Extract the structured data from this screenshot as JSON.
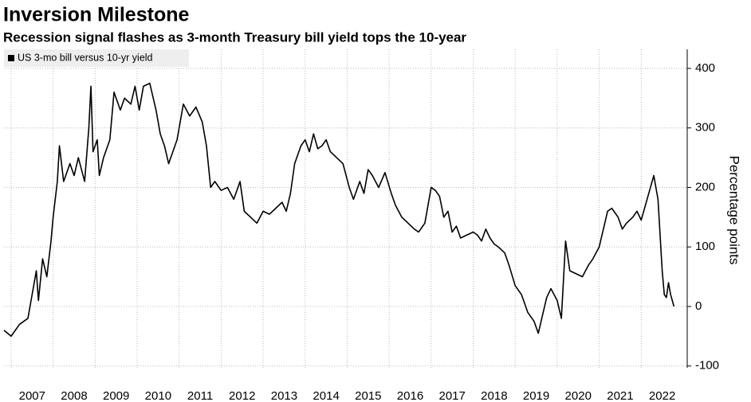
{
  "chart_data": {
    "type": "line",
    "title": "Inversion Milestone",
    "subtitle": "Recession signal flashes as 3-month Treasury bill yield tops the 10-year",
    "y_label": "Percentage points",
    "y_axis_side": "right",
    "legend": "top-left",
    "grid": true,
    "xlim": [
      2006.83,
      2022.83
    ],
    "xticks": [
      2007,
      2008,
      2009,
      2010,
      2011,
      2012,
      2013,
      2014,
      2015,
      2016,
      2017,
      2018,
      2019,
      2020,
      2021,
      2022
    ],
    "ylim": [
      -103,
      432
    ],
    "yticks": [
      -100,
      0,
      100,
      200,
      300,
      400
    ],
    "x": [
      2006.83,
      2007.0,
      2007.2,
      2007.4,
      2007.5,
      2007.6,
      2007.65,
      2007.75,
      2007.85,
      2007.95,
      2008.0,
      2008.1,
      2008.15,
      2008.25,
      2008.4,
      2008.5,
      2008.6,
      2008.75,
      2008.85,
      2008.9,
      2008.95,
      2009.05,
      2009.1,
      2009.2,
      2009.35,
      2009.45,
      2009.6,
      2009.7,
      2009.85,
      2009.95,
      2010.05,
      2010.15,
      2010.3,
      2010.45,
      2010.55,
      2010.65,
      2010.75,
      2010.85,
      2010.95,
      2011.1,
      2011.25,
      2011.4,
      2011.55,
      2011.65,
      2011.75,
      2011.85,
      2012.0,
      2012.15,
      2012.3,
      2012.45,
      2012.55,
      2012.7,
      2012.85,
      2013.0,
      2013.15,
      2013.3,
      2013.45,
      2013.55,
      2013.65,
      2013.75,
      2013.9,
      2014.0,
      2014.1,
      2014.2,
      2014.3,
      2014.4,
      2014.5,
      2014.6,
      2014.75,
      2014.9,
      2015.05,
      2015.15,
      2015.3,
      2015.4,
      2015.5,
      2015.6,
      2015.75,
      2015.9,
      2016.05,
      2016.15,
      2016.3,
      2016.45,
      2016.6,
      2016.7,
      2016.85,
      2017.0,
      2017.1,
      2017.2,
      2017.3,
      2017.4,
      2017.5,
      2017.6,
      2017.7,
      2017.85,
      2018.0,
      2018.1,
      2018.2,
      2018.3,
      2018.4,
      2018.5,
      2018.6,
      2018.75,
      2018.85,
      2019.0,
      2019.15,
      2019.3,
      2019.45,
      2019.55,
      2019.65,
      2019.75,
      2019.85,
      2020.0,
      2020.1,
      2020.2,
      2020.3,
      2020.45,
      2020.6,
      2020.75,
      2020.85,
      2021.0,
      2021.1,
      2021.2,
      2021.3,
      2021.45,
      2021.55,
      2021.65,
      2021.8,
      2021.9,
      2022.0,
      2022.1,
      2022.2,
      2022.3,
      2022.4,
      2022.5,
      2022.55,
      2022.6,
      2022.65,
      2022.7,
      2022.78
    ],
    "series": [
      {
        "name": "US 3-mo bill versus 10-yr yield",
        "color": "#000000",
        "values": [
          -40,
          -50,
          -30,
          -20,
          20,
          60,
          10,
          80,
          50,
          110,
          150,
          210,
          270,
          210,
          240,
          220,
          250,
          210,
          300,
          370,
          260,
          280,
          220,
          250,
          280,
          360,
          330,
          350,
          340,
          370,
          330,
          370,
          375,
          330,
          290,
          270,
          240,
          260,
          280,
          340,
          320,
          335,
          310,
          270,
          200,
          210,
          195,
          200,
          180,
          210,
          160,
          150,
          140,
          160,
          155,
          165,
          175,
          160,
          190,
          240,
          270,
          280,
          260,
          290,
          265,
          270,
          280,
          260,
          250,
          240,
          200,
          180,
          210,
          190,
          230,
          220,
          200,
          225,
          190,
          170,
          150,
          140,
          130,
          125,
          140,
          200,
          195,
          185,
          150,
          160,
          125,
          135,
          115,
          120,
          125,
          120,
          110,
          130,
          115,
          105,
          100,
          90,
          70,
          35,
          20,
          -10,
          -25,
          -45,
          -15,
          15,
          30,
          10,
          -20,
          110,
          60,
          55,
          50,
          70,
          80,
          100,
          130,
          160,
          165,
          150,
          130,
          140,
          150,
          160,
          145,
          170,
          195,
          220,
          180,
          60,
          20,
          15,
          40,
          20,
          0
        ]
      }
    ]
  }
}
